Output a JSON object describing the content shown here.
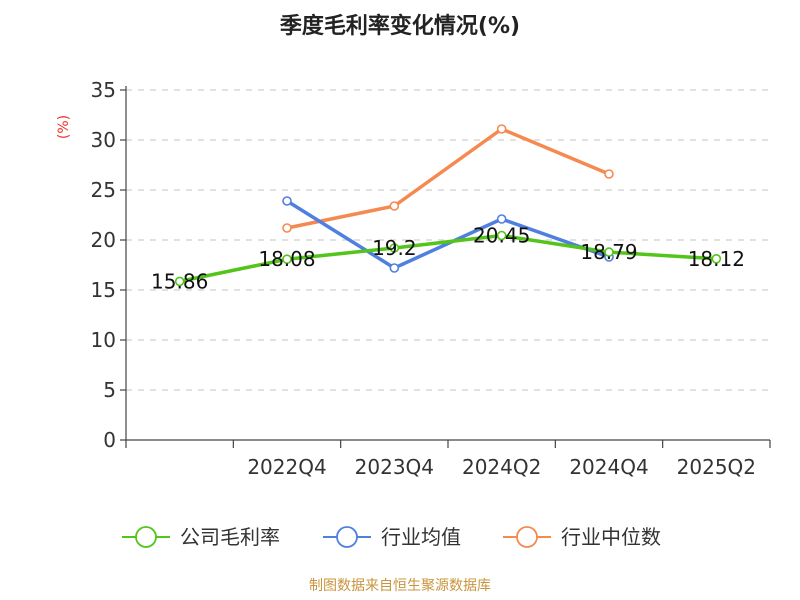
{
  "chart_data": {
    "type": "line",
    "title": "季度毛利率变化情况(%)",
    "ylabel": "(%)",
    "xlabel": "",
    "ylim": [
      0,
      35
    ],
    "yticks": [
      "0",
      "5",
      "10",
      "15",
      "20",
      "25",
      "30",
      "35"
    ],
    "categories": [
      "",
      "2022Q4",
      "2023Q4",
      "2024Q2",
      "2024Q4",
      "2025Q2"
    ],
    "grid": "horizontal-dashed",
    "legend_position": "bottom",
    "series": [
      {
        "name": "公司毛利率",
        "color": "#52c41a",
        "values": [
          15.86,
          18.08,
          19.2,
          20.45,
          18.79,
          18.12
        ],
        "labels": [
          "15.86",
          "18.08",
          "19.2",
          "20.45",
          "18.79",
          "18.12"
        ]
      },
      {
        "name": "行业均值",
        "color": "#4f7fe0",
        "values": [
          null,
          23.9,
          17.2,
          22.1,
          18.3,
          null
        ]
      },
      {
        "name": "行业中位数",
        "color": "#f5894f",
        "values": [
          null,
          21.2,
          23.4,
          31.1,
          26.6,
          null
        ]
      }
    ]
  },
  "footer": {
    "source": "制图数据来自恒生聚源数据库"
  }
}
